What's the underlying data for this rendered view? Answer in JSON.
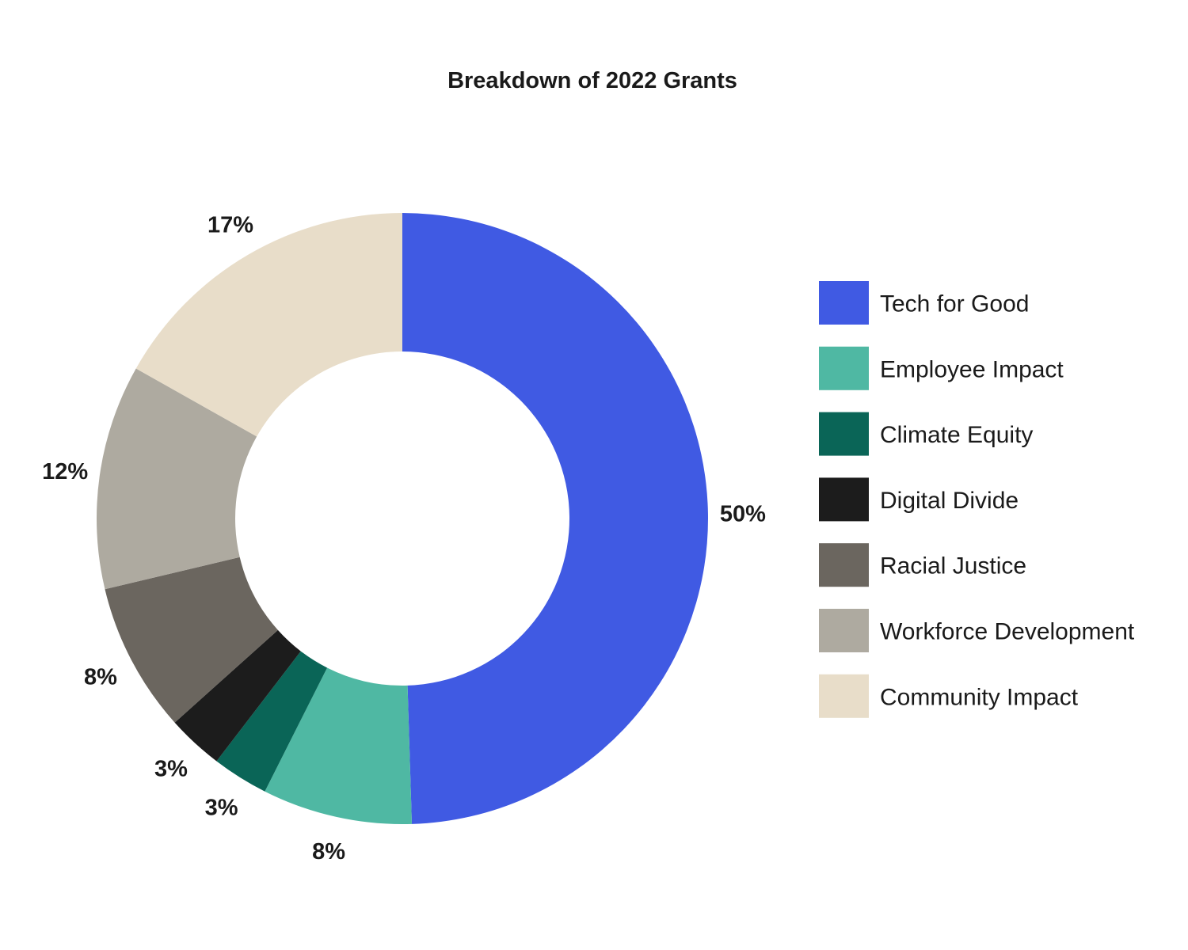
{
  "chart_data": {
    "type": "pie",
    "variant": "donut",
    "title": "Breakdown of 2022 Grants",
    "legend_position": "right",
    "slices": [
      {
        "name": "Tech for Good",
        "value": 50,
        "label": "50%",
        "color": "#405AE3"
      },
      {
        "name": "Employee Impact",
        "value": 8,
        "label": "8%",
        "color": "#4FB8A3"
      },
      {
        "name": "Climate Equity",
        "value": 3,
        "label": "3%",
        "color": "#0A6557"
      },
      {
        "name": "Digital Divide",
        "value": 3,
        "label": "3%",
        "color": "#1C1C1C"
      },
      {
        "name": "Racial Justice",
        "value": 8,
        "label": "8%",
        "color": "#6B665F"
      },
      {
        "name": "Workforce Development",
        "value": 12,
        "label": "12%",
        "color": "#AEAAA0"
      },
      {
        "name": "Community Impact",
        "value": 17,
        "label": "17%",
        "color": "#E8DDC9"
      }
    ]
  }
}
